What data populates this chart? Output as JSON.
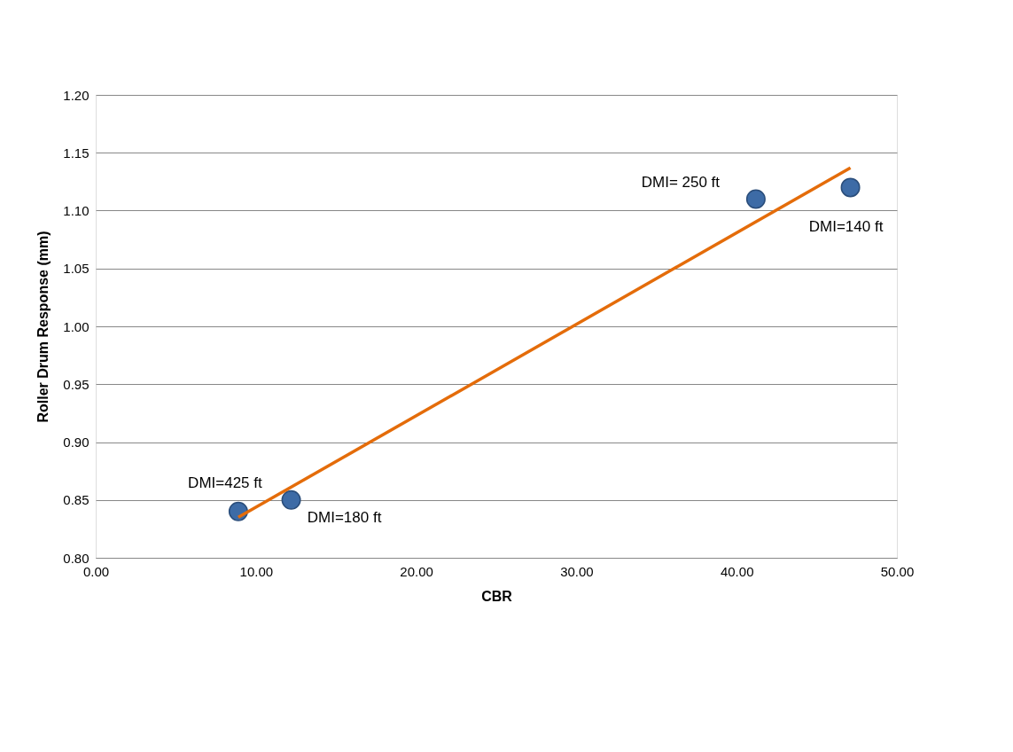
{
  "chart_data": {
    "type": "scatter",
    "xlabel": "CBR",
    "ylabel": "Roller Drum Response (mm)",
    "xlim": [
      0,
      50
    ],
    "ylim": [
      0.8,
      1.2
    ],
    "xticks": [
      {
        "value": 0,
        "label": "0.00"
      },
      {
        "value": 10,
        "label": "10.00"
      },
      {
        "value": 20,
        "label": "20.00"
      },
      {
        "value": 30,
        "label": "30.00"
      },
      {
        "value": 40,
        "label": "40.00"
      },
      {
        "value": 50,
        "label": "50.00"
      }
    ],
    "yticks": [
      {
        "value": 0.8,
        "label": "0.80"
      },
      {
        "value": 0.85,
        "label": "0.85"
      },
      {
        "value": 0.9,
        "label": "0.90"
      },
      {
        "value": 0.95,
        "label": "0.95"
      },
      {
        "value": 1.0,
        "label": "1.00"
      },
      {
        "value": 1.05,
        "label": "1.05"
      },
      {
        "value": 1.1,
        "label": "1.10"
      },
      {
        "value": 1.15,
        "label": "1.15"
      },
      {
        "value": 1.2,
        "label": "1.20"
      }
    ],
    "grid": "y",
    "marker": "circle",
    "series": [
      {
        "color": "#3d6ba6",
        "x": [
          8.9,
          12.2,
          41.2,
          47.1
        ],
        "values": [
          0.84,
          0.85,
          1.11,
          1.12
        ]
      },
      {
        "type": "line",
        "marker": "none",
        "color": "#e46c0a",
        "x": [
          8.9,
          47.1
        ],
        "values": [
          0.835,
          1.137
        ]
      }
    ],
    "annotations": [
      {
        "text": "DMI=425 ft",
        "x": 8.9,
        "y": 0.84
      },
      {
        "text": "DMI=180 ft",
        "x": 12.2,
        "y": 0.85
      },
      {
        "text": "DMI= 250 ft",
        "x": 41.2,
        "y": 1.11
      },
      {
        "text": "DMI=140 ft",
        "x": 47.1,
        "y": 1.12
      }
    ]
  }
}
